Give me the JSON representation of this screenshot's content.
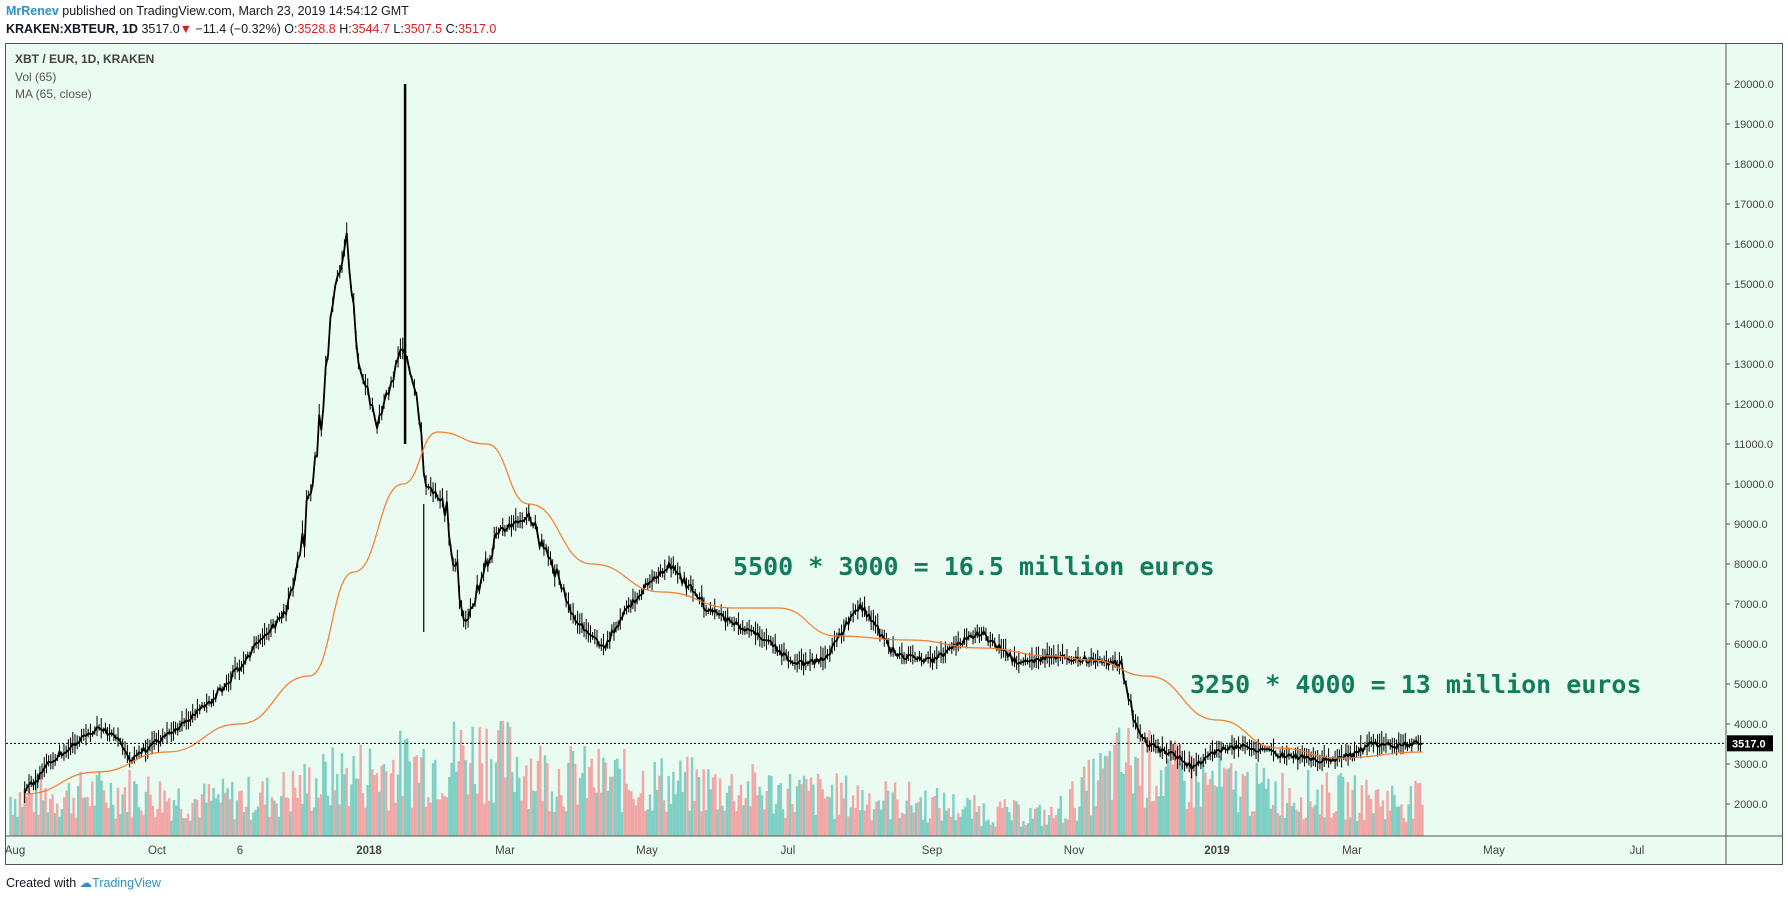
{
  "header": {
    "author": "MrRenev",
    "published": "published on TradingView.com, March 23, 2019 14:54:12 GMT",
    "symbol": "KRAKEN:XBTEUR, 1D",
    "last": "3517.0",
    "arrow": "▼",
    "change": "−11.4 (−0.32%)",
    "o_label": "O:",
    "o_value": "3528.8",
    "h_label": "H:",
    "h_value": "3544.7",
    "l_label": "L:",
    "l_value": "3507.5",
    "c_label": "C:",
    "c_value": "3517.0"
  },
  "info_lines": [
    "XBT / EUR, 1D, KRAKEN",
    "Vol (65)",
    "MA (65, close)"
  ],
  "footer": {
    "created_with": "Created with",
    "brand": "TradingView"
  },
  "colors": {
    "background": "#eafbf1",
    "candles": "#000000",
    "ma": "#f57c2a",
    "vol_up": "#7fcfc4",
    "vol_down": "#f2a7a7",
    "annotation": "#137c5a",
    "price_tag": "#000000"
  },
  "chart_data": {
    "type": "line",
    "title": "XBT / EUR, 1D, KRAKEN",
    "y_scale": "linear",
    "ylim": [
      1200,
      21000
    ],
    "y_ticks": [
      "20000.0",
      "19000.0",
      "18000.0",
      "17000.0",
      "16000.0",
      "15000.0",
      "14000.0",
      "13000.0",
      "12000.0",
      "11000.0",
      "10000.0",
      "9000.0",
      "8000.0",
      "7000.0",
      "6000.0",
      "5000.0",
      "4000.0",
      "3000.0",
      "2000.0"
    ],
    "x_ticks": [
      "Aug",
      "Oct",
      "6",
      "2018",
      "Mar",
      "May",
      "Jul",
      "Sep",
      "Nov",
      "2019",
      "Mar",
      "May",
      "Jul"
    ],
    "last_price_label": "3517.0",
    "series": [
      {
        "name": "XBT / EUR",
        "x": [
          "2017-08-01",
          "2017-08-15",
          "2017-09-01",
          "2017-09-10",
          "2017-09-15",
          "2017-09-20",
          "2017-10-01",
          "2017-10-12",
          "2017-10-20",
          "2017-11-01",
          "2017-11-10",
          "2017-11-20",
          "2017-11-28",
          "2017-12-07",
          "2017-12-10",
          "2017-12-17",
          "2017-12-22",
          "2017-12-25",
          "2017-12-30",
          "2018-01-05",
          "2018-01-10",
          "2018-01-16",
          "2018-01-20",
          "2018-01-28",
          "2018-02-06",
          "2018-02-10",
          "2018-02-20",
          "2018-03-05",
          "2018-03-18",
          "2018-03-25",
          "2018-04-06",
          "2018-04-15",
          "2018-04-25",
          "2018-05-05",
          "2018-05-20",
          "2018-06-01",
          "2018-06-12",
          "2018-06-28",
          "2018-07-10",
          "2018-07-17",
          "2018-07-25",
          "2018-08-10",
          "2018-08-25",
          "2018-09-05",
          "2018-09-15",
          "2018-10-01",
          "2018-10-15",
          "2018-11-01",
          "2018-11-14",
          "2018-11-20",
          "2018-11-25",
          "2018-12-07",
          "2018-12-15",
          "2018-12-22",
          "2019-01-05",
          "2019-01-20",
          "2019-02-07",
          "2019-02-20",
          "2019-03-01",
          "2019-03-10",
          "2019-03-23"
        ],
        "values": [
          2300,
          3200,
          3900,
          3700,
          3100,
          3300,
          3700,
          4200,
          4600,
          5400,
          6100,
          6700,
          8500,
          12000,
          14200,
          16000,
          13000,
          12500,
          11500,
          12500,
          13500,
          12200,
          10000,
          9500,
          6500,
          7200,
          8800,
          9200,
          7600,
          6600,
          5900,
          6800,
          7500,
          8000,
          6900,
          6500,
          6200,
          5500,
          5600,
          6300,
          7000,
          5700,
          5600,
          6000,
          6300,
          5500,
          5700,
          5600,
          5500,
          4000,
          3500,
          3200,
          2900,
          3300,
          3450,
          3250,
          3100,
          3200,
          3500,
          3450,
          3517
        ]
      },
      {
        "name": "MA (65, close)",
        "x": [
          "2017-08-01",
          "2017-09-01",
          "2017-10-01",
          "2017-11-01",
          "2017-12-01",
          "2017-12-20",
          "2018-01-10",
          "2018-01-25",
          "2018-02-15",
          "2018-03-05",
          "2018-04-01",
          "2018-05-01",
          "2018-06-01",
          "2018-06-20",
          "2018-07-15",
          "2018-08-15",
          "2018-09-15",
          "2018-10-15",
          "2018-11-01",
          "2018-11-25",
          "2018-12-25",
          "2019-01-20",
          "2019-02-15",
          "2019-03-23"
        ],
        "values": [
          2250,
          2800,
          3300,
          4000,
          5200,
          7800,
          10000,
          11300,
          11000,
          9500,
          8000,
          7300,
          6900,
          6900,
          6200,
          6100,
          5900,
          5700,
          5600,
          5200,
          4100,
          3400,
          3150,
          3300
        ]
      }
    ],
    "volume": {
      "name": "Vol (65)",
      "x": [
        "2017-08",
        "2017-09",
        "2017-10",
        "2017-11",
        "2017-12",
        "2018-01",
        "2018-02",
        "2018-03",
        "2018-04",
        "2018-05",
        "2018-06",
        "2018-07",
        "2018-08",
        "2018-09",
        "2018-10",
        "2018-11",
        "2018-12",
        "2019-01",
        "2019-02",
        "2019-03"
      ],
      "values": [
        40,
        45,
        35,
        40,
        60,
        70,
        85,
        60,
        55,
        50,
        45,
        40,
        35,
        25,
        20,
        75,
        55,
        45,
        40,
        35
      ]
    },
    "annotations": [
      "5500 * 3000 = 16.5 million euros",
      "3250 * 4000 = 13 million euros"
    ]
  }
}
